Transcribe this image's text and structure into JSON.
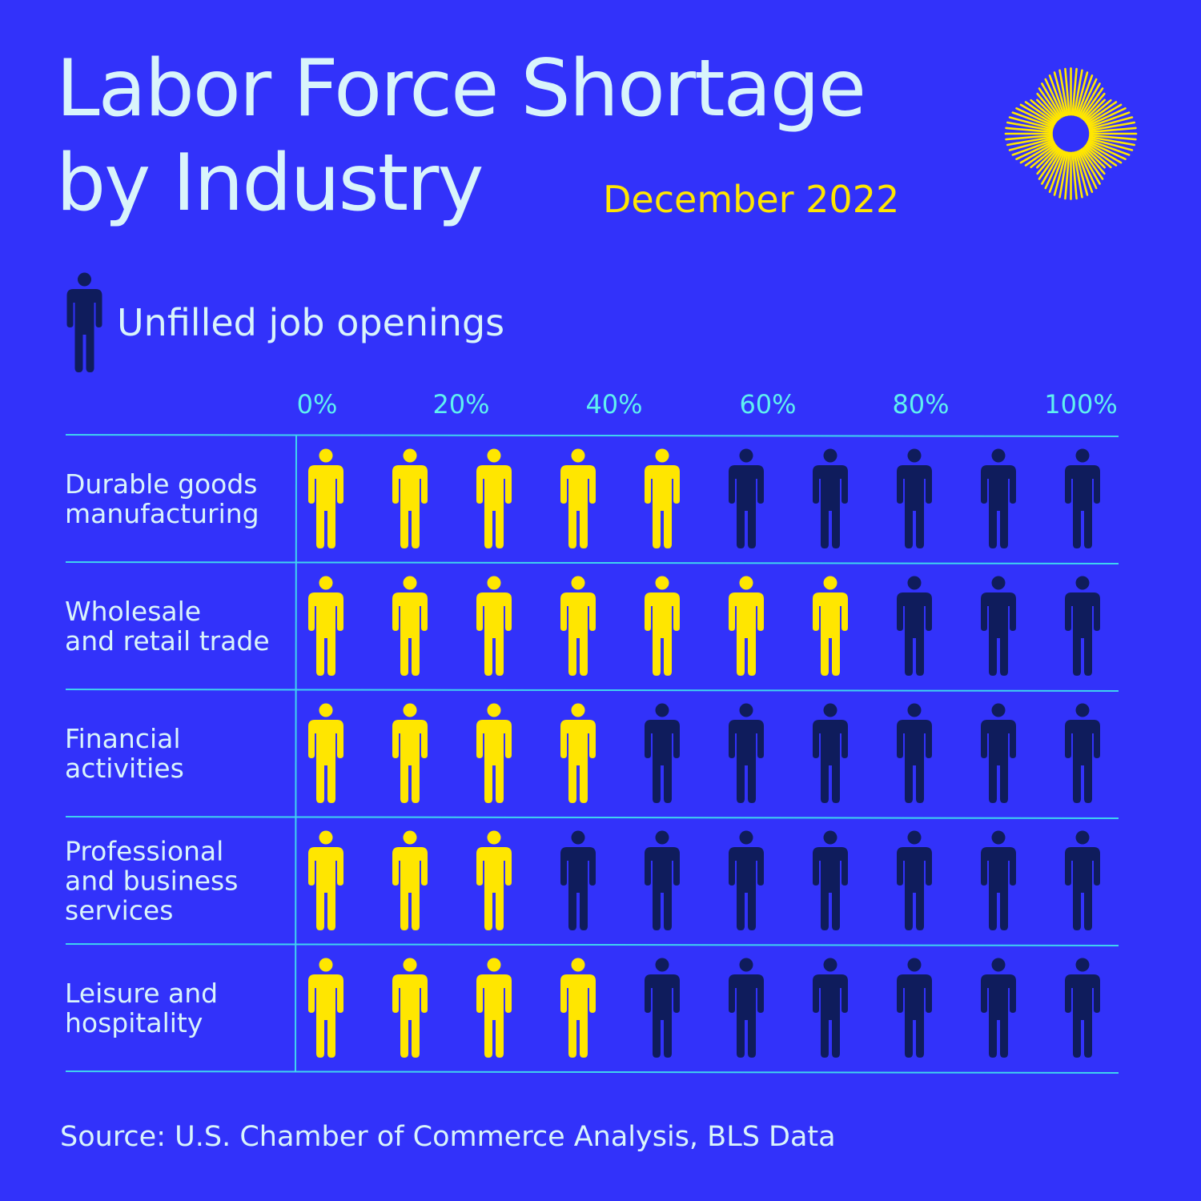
{
  "header": {
    "title_line1": "Labor Force Shortage",
    "title_line2": "by Industry",
    "date": "December 2022"
  },
  "legend": {
    "label": "Unfilled job openings",
    "icon": "person-icon"
  },
  "source": "Source: U.S. Chamber of Commerce Analysis, BLS Data",
  "colors": {
    "background": "#3232fa",
    "filled": "#ffe600",
    "unfilled": "#0f1c5c",
    "text": "#d9f4fb",
    "axis": "#5ff0f0",
    "grid": "#3fd3f0"
  },
  "chart_data": {
    "type": "pictograph",
    "icons_per_row": 10,
    "x_ticks": [
      "0%",
      "20%",
      "40%",
      "60%",
      "80%",
      "100%"
    ],
    "categories": [
      "Durable goods manufacturing",
      "Wholesale and retail trade",
      "Financial activities",
      "Professional and business services",
      "Leisure and hospitality"
    ],
    "category_lines": [
      [
        "Durable goods",
        "manufacturing"
      ],
      [
        "Wholesale",
        "and retail trade"
      ],
      [
        "Financial",
        "activities"
      ],
      [
        "Professional",
        "and business",
        "services"
      ],
      [
        "Leisure and",
        "hospitality"
      ]
    ],
    "series": [
      {
        "values": [
          5,
          7.5,
          4,
          3.5,
          4
        ]
      }
    ],
    "unit": "filled person icons out of 10",
    "grid": true
  }
}
